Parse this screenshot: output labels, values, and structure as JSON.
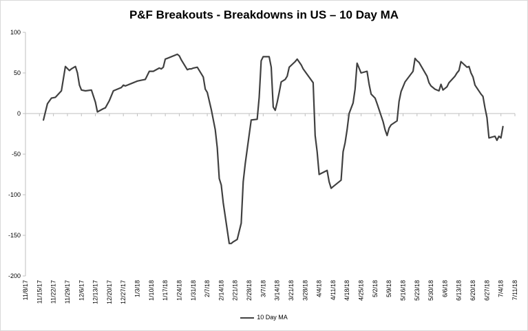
{
  "chart_data": {
    "type": "line",
    "title": "P&F Breakouts - Breakdowns in US – 10 Day MA",
    "xlabel": "",
    "ylabel": "",
    "ylim": [
      -200,
      100
    ],
    "yticks": [
      100,
      50,
      0,
      -50,
      -100,
      -150,
      -200
    ],
    "xlim": [
      "11/8/17",
      "7/11/18"
    ],
    "xticks": [
      "11/8/17",
      "11/15/17",
      "11/22/17",
      "11/29/17",
      "12/6/17",
      "12/13/17",
      "12/20/17",
      "12/27/17",
      "1/3/18",
      "1/10/18",
      "1/17/18",
      "1/24/18",
      "1/31/18",
      "2/7/18",
      "2/14/18",
      "2/21/18",
      "2/28/18",
      "3/7/18",
      "3/14/18",
      "3/21/18",
      "3/28/18",
      "4/4/18",
      "4/11/18",
      "4/18/18",
      "4/25/18",
      "5/2/18",
      "5/9/18",
      "5/16/18",
      "5/23/18",
      "5/30/18",
      "6/6/18",
      "6/13/18",
      "6/20/18",
      "6/27/18",
      "7/4/18",
      "7/11/18"
    ],
    "grid": false,
    "legend_position": "bottom",
    "colors": {
      "line": "#404040",
      "axis": "#bfbfbf",
      "text": "#000000",
      "frame": "#d9d9d9"
    },
    "series": [
      {
        "name": "10 Day MA",
        "x": [
          "11/17/17",
          "11/19/17",
          "11/21/17",
          "11/23/17",
          "11/26/17",
          "11/28/17",
          "11/30/17",
          "12/1/17",
          "12/3/17",
          "12/4/17",
          "12/5/17",
          "12/6/17",
          "12/8/17",
          "12/11/17",
          "12/13/17",
          "12/14/17",
          "12/17/17",
          "12/18/17",
          "12/20/17",
          "12/22/17",
          "12/25/17",
          "12/26/17",
          "12/27/17",
          "12/28/17",
          "1/1/18",
          "1/2/18",
          "1/3/18",
          "1/5/18",
          "1/7/18",
          "1/8/18",
          "1/9/18",
          "1/11/18",
          "1/14/18",
          "1/15/18",
          "1/16/18",
          "1/17/18",
          "1/18/18",
          "1/23/18",
          "1/24/18",
          "1/25/18",
          "1/28/18",
          "1/29/18",
          "1/30/18",
          "1/31/18",
          "2/2/18",
          "2/4/18",
          "2/5/18",
          "2/6/18",
          "2/7/18",
          "2/9/18",
          "2/11/18",
          "2/12/18",
          "2/13/18",
          "2/14/18",
          "2/15/18",
          "2/18/18",
          "2/19/18",
          "2/20/18",
          "2/22/18",
          "2/24/18",
          "2/25/18",
          "2/26/18",
          "2/27/18",
          "3/1/18",
          "3/4/18",
          "3/5/18",
          "3/6/18",
          "3/7/18",
          "3/10/18",
          "3/11/18",
          "3/12/18",
          "3/13/18",
          "3/14/18",
          "3/15/18",
          "3/16/18",
          "3/18/18",
          "3/19/18",
          "3/20/18",
          "3/23/18",
          "3/24/18",
          "3/26/18",
          "3/27/18",
          "4/1/18",
          "4/2/18",
          "4/3/18",
          "4/4/18",
          "4/8/18",
          "4/9/18",
          "4/10/18",
          "4/11/18",
          "4/15/18",
          "4/16/18",
          "4/17/18",
          "4/18/18",
          "4/19/18",
          "4/21/18",
          "4/22/18",
          "4/23/18",
          "4/25/18",
          "4/28/18",
          "4/29/18",
          "4/30/18",
          "5/2/18",
          "5/3/18",
          "5/6/18",
          "5/7/18",
          "5/8/18",
          "5/9/18",
          "5/10/18",
          "5/13/18",
          "5/14/18",
          "5/15/18",
          "5/16/18",
          "5/17/18",
          "5/21/18",
          "5/22/18",
          "5/23/18",
          "5/24/18",
          "5/28/18",
          "5/29/18",
          "5/30/18",
          "6/1/18",
          "6/3/18",
          "6/4/18",
          "6/5/18",
          "6/7/18",
          "6/8/18",
          "6/11/18",
          "6/12/18",
          "6/13/18",
          "6/14/18",
          "6/17/18",
          "6/18/18",
          "6/19/18",
          "6/20/18",
          "6/21/18",
          "6/24/18",
          "6/25/18",
          "6/26/18",
          "6/27/18",
          "6/28/18",
          "7/1/18",
          "7/2/18",
          "7/3/18",
          "7/4/18",
          "7/5/18"
        ],
        "values": [
          -8,
          12,
          19,
          20,
          28,
          58,
          53,
          55,
          58,
          50,
          35,
          29,
          28,
          29,
          14,
          2,
          6,
          7,
          16,
          28,
          31,
          32,
          35,
          34,
          38,
          39,
          40,
          41,
          42,
          47,
          52,
          52,
          56,
          55,
          57,
          67,
          68,
          73,
          71,
          66,
          54,
          55,
          55,
          56,
          57,
          49,
          45,
          30,
          26,
          5,
          -20,
          -42,
          -80,
          -88,
          -110,
          -160,
          -160,
          -158,
          -155,
          -135,
          -84,
          -62,
          -44,
          -8,
          -7,
          20,
          65,
          70,
          70,
          57,
          8,
          4,
          14,
          26,
          39,
          42,
          46,
          57,
          64,
          67,
          60,
          55,
          38,
          -27,
          -47,
          -75,
          -70,
          -84,
          -92,
          -90,
          -82,
          -47,
          -36,
          -20,
          0,
          13,
          30,
          62,
          50,
          52,
          36,
          24,
          19,
          12,
          -10,
          -20,
          -27,
          -18,
          -14,
          -9,
          15,
          27,
          33,
          39,
          52,
          68,
          65,
          63,
          46,
          38,
          34,
          30,
          28,
          36,
          29,
          33,
          38,
          46,
          50,
          53,
          64,
          57,
          58,
          50,
          45,
          35,
          24,
          21,
          7,
          -5,
          -30,
          -28,
          -33,
          -28,
          -30,
          -16
        ]
      }
    ]
  }
}
